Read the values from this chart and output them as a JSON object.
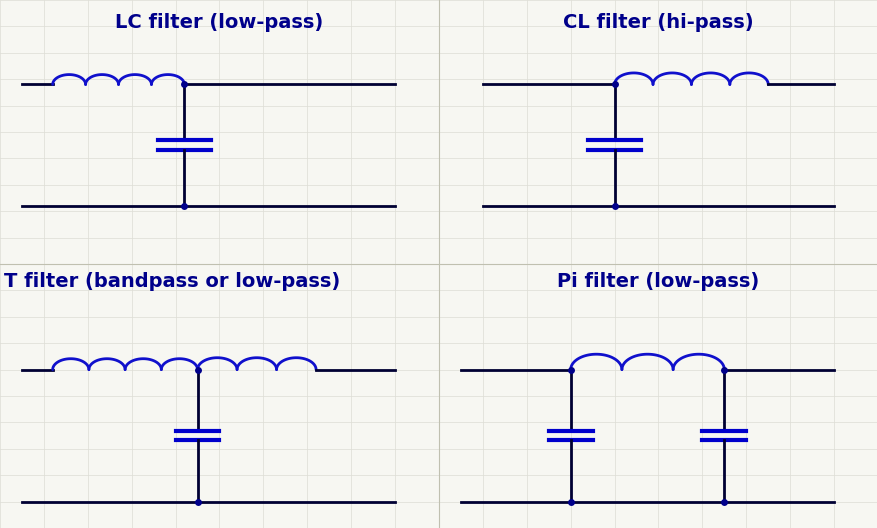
{
  "background_color": "#f7f7f2",
  "grid_color": "#ddddd5",
  "line_color_dark": "#00008B",
  "line_color_blue": "#0000CD",
  "dot_color": "#00008B",
  "title_color": "#00008B",
  "title_fontsize": 14,
  "title_fontweight": "bold",
  "wire_color": "#000033",
  "inductor_color": "#1010CC",
  "cap_plate_color": "#0000CC",
  "cap_wire_color": "#000033",
  "panels": [
    {
      "title": "LC filter (low-pass)"
    },
    {
      "title": "CL filter (hi-pass)"
    },
    {
      "title": "T filter (bandpass or low-pass)"
    },
    {
      "title": "Pi filter (low-pass)"
    }
  ]
}
